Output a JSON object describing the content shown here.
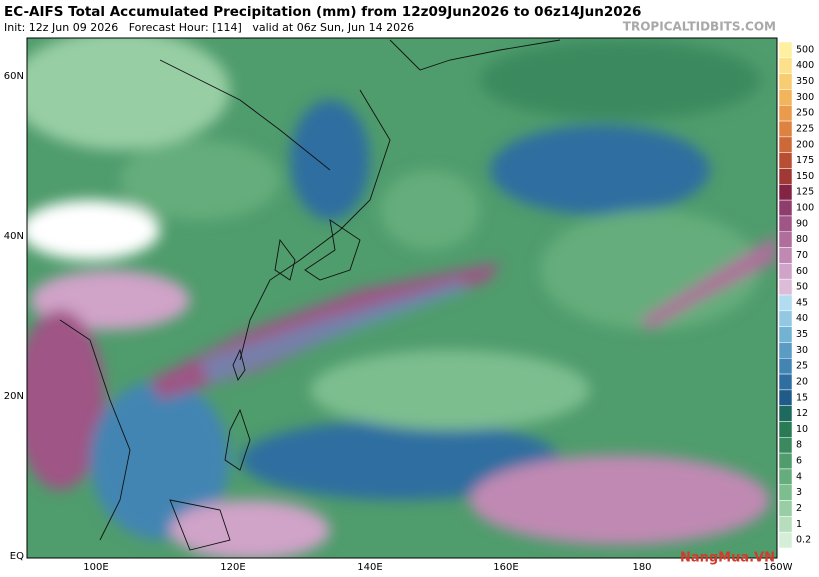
{
  "header": {
    "title": "EC-AIFS Total Accumulated Precipitation (mm) from 12z09Jun2026 to 06z14Jun2026",
    "subtitle": "Init: 12z Jun 09 2026   Forecast Hour: [114]   valid at 06z Sun, Jun 14 2026",
    "site": "TROPICALTIDBITS.COM"
  },
  "map": {
    "lat_labels": [
      "60N",
      "40N",
      "20N",
      "EQ"
    ],
    "lon_labels": [
      "100E",
      "120E",
      "140E",
      "160E",
      "180",
      "160W"
    ]
  },
  "colorbar": {
    "labels": [
      "500",
      "400",
      "350",
      "300",
      "250",
      "225",
      "200",
      "175",
      "150",
      "125",
      "100",
      "90",
      "80",
      "70",
      "60",
      "50",
      "45",
      "40",
      "35",
      "30",
      "25",
      "20",
      "15",
      "12",
      "10",
      "8",
      "6",
      "4",
      "3",
      "2",
      "1",
      "0.2"
    ],
    "colors": [
      "#fff0a0",
      "#fde08a",
      "#f8cc70",
      "#f2b55c",
      "#ea9c4c",
      "#de8241",
      "#cd6838",
      "#b84f33",
      "#a03834",
      "#842444",
      "#8e3d6c",
      "#9f5585",
      "#b06e9c",
      "#c089b3",
      "#d0a3c8",
      "#ddbcd9",
      "#b2dcef",
      "#92c8e2",
      "#72b3d4",
      "#5a9cc4",
      "#4285b3",
      "#2e6ea0",
      "#215c88",
      "#1f6a5e",
      "#2b7a56",
      "#3b8a5f",
      "#4f9c6c",
      "#65ad7c",
      "#7dbe8f",
      "#98cea4",
      "#b6debc",
      "#d5eed8"
    ]
  },
  "watermark": "NangMua.VN"
}
